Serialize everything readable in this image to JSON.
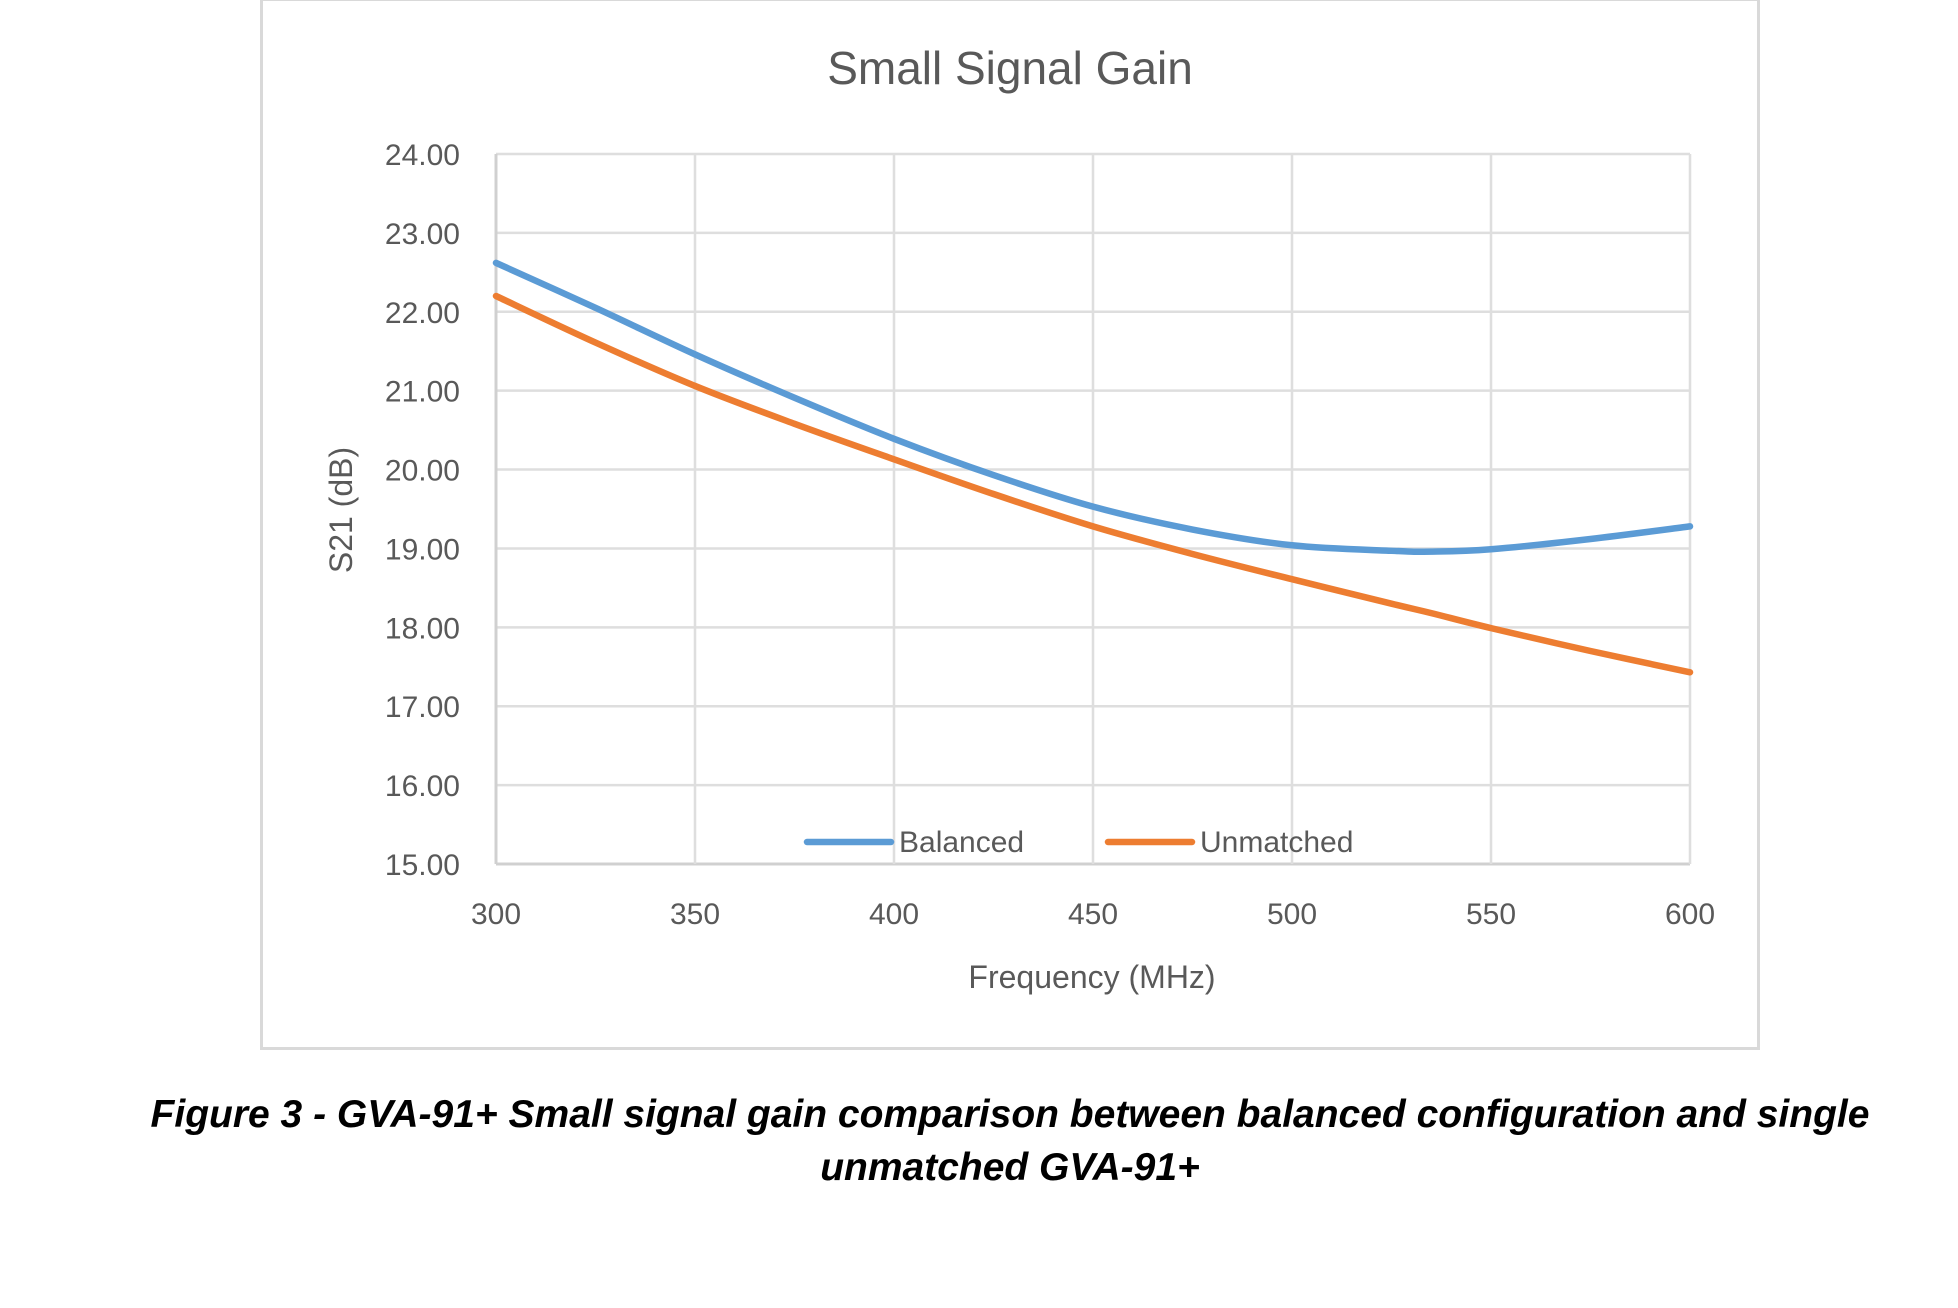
{
  "chart_data": {
    "type": "line",
    "title": "Small Signal Gain",
    "xlabel": "Frequency (MHz)",
    "ylabel": "S21 (dB)",
    "xlim": [
      300,
      600
    ],
    "ylim": [
      15,
      24
    ],
    "x_ticks": [
      "300",
      "350",
      "400",
      "450",
      "500",
      "550",
      "600"
    ],
    "y_ticks": [
      "15.00",
      "16.00",
      "17.00",
      "18.00",
      "19.00",
      "20.00",
      "21.00",
      "22.00",
      "23.00",
      "24.00"
    ],
    "grid": true,
    "legend_position": "bottom-inside",
    "x": [
      300,
      325,
      350,
      375,
      400,
      425,
      450,
      475,
      500,
      525,
      535,
      550,
      575,
      600
    ],
    "series": [
      {
        "name": "Balanced",
        "color": "#5b9bd5",
        "values": [
          22.62,
          22.05,
          21.46,
          20.91,
          20.39,
          19.93,
          19.53,
          19.24,
          19.04,
          18.97,
          18.96,
          18.99,
          19.12,
          19.28
        ]
      },
      {
        "name": "Unmatched",
        "color": "#ed7d31",
        "values": [
          22.2,
          21.61,
          21.06,
          20.58,
          20.13,
          19.69,
          19.28,
          18.93,
          18.61,
          18.3,
          18.18,
          17.99,
          17.7,
          17.43
        ]
      }
    ]
  },
  "caption": {
    "line1": "Figure 3 - GVA-91+ Small signal gain comparison between balanced configuration and single",
    "line2": "unmatched GVA-91+"
  }
}
